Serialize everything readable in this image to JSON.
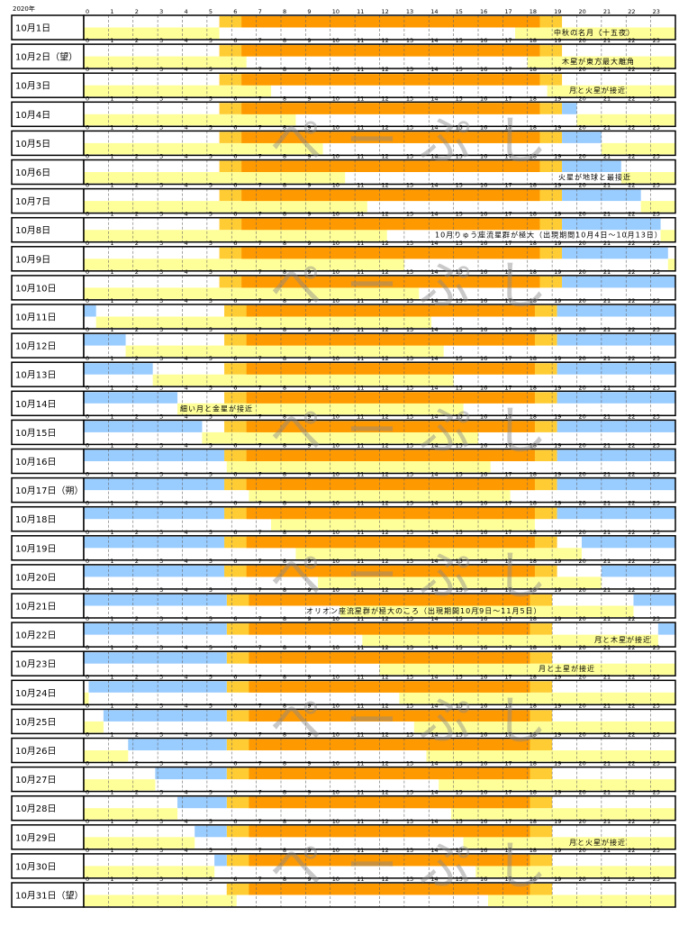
{
  "header": {
    "year": "2020年"
  },
  "watermark": "ぺーぷし",
  "colors": {
    "twilight": "#ffcc33",
    "day": "#ff9900",
    "night": "#99ccff",
    "moon": "#ffff99"
  },
  "hours": [
    0,
    1,
    2,
    3,
    4,
    5,
    6,
    7,
    8,
    9,
    10,
    11,
    12,
    13,
    14,
    15,
    16,
    17,
    18,
    19,
    20,
    21,
    22,
    23
  ],
  "days": [
    {
      "label": "10月1日",
      "twilight": [
        5.5,
        19.4
      ],
      "day": [
        6.4,
        18.5
      ],
      "night": [],
      "moon": [
        [
          0,
          5.5
        ],
        [
          17.5,
          24
        ]
      ],
      "note": "中秋の名月（十五夜）"
    },
    {
      "label": "10月2日（望）",
      "twilight": [
        5.5,
        19.4
      ],
      "day": [
        6.4,
        18.5
      ],
      "night": [],
      "moon": [
        [
          0,
          6.6
        ],
        [
          18.0,
          24
        ]
      ],
      "note": "木星が東方最大離角"
    },
    {
      "label": "10月3日",
      "twilight": [
        5.5,
        19.4
      ],
      "day": [
        6.4,
        18.5
      ],
      "night": [],
      "moon": [
        [
          0,
          7.6
        ],
        [
          18.8,
          24
        ]
      ],
      "note": "月と火星が接近"
    },
    {
      "label": "10月4日",
      "twilight": [
        5.5,
        19.4
      ],
      "day": [
        6.4,
        18.5
      ],
      "night": [
        [
          19.4,
          20.0
        ]
      ],
      "moon": [
        [
          0,
          8.6
        ],
        [
          20.0,
          24
        ]
      ]
    },
    {
      "label": "10月5日",
      "twilight": [
        5.5,
        19.4
      ],
      "day": [
        6.4,
        18.5
      ],
      "night": [
        [
          19.4,
          21.0
        ]
      ],
      "moon": [
        [
          0,
          9.7
        ],
        [
          21.0,
          24
        ]
      ]
    },
    {
      "label": "10月6日",
      "twilight": [
        5.5,
        19.4
      ],
      "day": [
        6.4,
        18.5
      ],
      "night": [
        [
          19.4,
          21.8
        ]
      ],
      "moon": [
        [
          0,
          10.6
        ],
        [
          21.8,
          24
        ]
      ],
      "note": "火星が地球と最接近"
    },
    {
      "label": "10月7日",
      "twilight": [
        5.5,
        19.4
      ],
      "day": [
        6.4,
        18.5
      ],
      "night": [
        [
          19.4,
          22.6
        ]
      ],
      "moon": [
        [
          0,
          11.5
        ],
        [
          22.6,
          24
        ]
      ]
    },
    {
      "label": "10月8日",
      "twilight": [
        5.5,
        19.4
      ],
      "day": [
        6.4,
        18.5
      ],
      "night": [
        [
          19.4,
          23.4
        ]
      ],
      "moon": [
        [
          0,
          12.3
        ],
        [
          23.4,
          24
        ]
      ],
      "note": "10月りゅう座流星群が極大（出現期間10月4日～10月13日）"
    },
    {
      "label": "10月9日",
      "twilight": [
        5.5,
        19.4
      ],
      "day": [
        6.4,
        18.5
      ],
      "night": [
        [
          19.4,
          23.7
        ]
      ],
      "moon": [
        [
          0,
          13.0
        ],
        [
          23.7,
          24
        ]
      ]
    },
    {
      "label": "10月10日",
      "twilight": [
        5.5,
        19.4
      ],
      "day": [
        6.4,
        18.5
      ],
      "night": [
        [
          19.4,
          24
        ]
      ],
      "moon": [
        [
          0,
          13.6
        ]
      ]
    },
    {
      "label": "10月11日",
      "twilight": [
        5.7,
        19.2
      ],
      "day": [
        6.6,
        18.3
      ],
      "night": [
        [
          0,
          0.5
        ],
        [
          19.2,
          24
        ]
      ],
      "moon": [
        [
          0.5,
          14.1
        ]
      ]
    },
    {
      "label": "10月12日",
      "twilight": [
        5.7,
        19.2
      ],
      "day": [
        6.6,
        18.3
      ],
      "night": [
        [
          0,
          1.7
        ],
        [
          19.2,
          24
        ]
      ],
      "moon": [
        [
          1.7,
          14.6
        ]
      ]
    },
    {
      "label": "10月13日",
      "twilight": [
        5.7,
        19.2
      ],
      "day": [
        6.6,
        18.3
      ],
      "night": [
        [
          0,
          2.8
        ],
        [
          19.2,
          24
        ]
      ],
      "moon": [
        [
          2.8,
          15.0
        ]
      ]
    },
    {
      "label": "10月14日",
      "twilight": [
        5.7,
        19.2
      ],
      "day": [
        6.6,
        18.3
      ],
      "night": [
        [
          0,
          3.8
        ],
        [
          19.2,
          24
        ]
      ],
      "moon": [
        [
          3.8,
          15.4
        ]
      ],
      "note": "細い月と金星が接近"
    },
    {
      "label": "10月15日",
      "twilight": [
        5.7,
        19.2
      ],
      "day": [
        6.6,
        18.3
      ],
      "night": [
        [
          0,
          4.8
        ],
        [
          19.2,
          24
        ]
      ],
      "moon": [
        [
          4.8,
          16.0
        ]
      ]
    },
    {
      "label": "10月16日",
      "twilight": [
        5.7,
        19.2
      ],
      "day": [
        6.6,
        18.3
      ],
      "night": [
        [
          0,
          5.7
        ],
        [
          19.2,
          24
        ]
      ],
      "moon": [
        [
          5.8,
          16.5
        ]
      ]
    },
    {
      "label": "10月17日（朔）",
      "twilight": [
        5.7,
        19.2
      ],
      "day": [
        6.6,
        18.3
      ],
      "night": [
        [
          0,
          5.7
        ],
        [
          19.2,
          24
        ]
      ],
      "moon": [
        [
          6.7,
          17.3
        ]
      ]
    },
    {
      "label": "10月18日",
      "twilight": [
        5.7,
        19.2
      ],
      "day": [
        6.6,
        18.3
      ],
      "night": [
        [
          0,
          5.7
        ],
        [
          19.2,
          24
        ]
      ],
      "moon": [
        [
          7.6,
          18.3
        ]
      ]
    },
    {
      "label": "10月19日",
      "twilight": [
        5.7,
        19.2
      ],
      "day": [
        6.6,
        18.3
      ],
      "night": [
        [
          0,
          5.7
        ],
        [
          20.2,
          24
        ]
      ],
      "moon": [
        [
          8.6,
          20.2
        ]
      ]
    },
    {
      "label": "10月20日",
      "twilight": [
        5.7,
        19.2
      ],
      "day": [
        6.6,
        18.3
      ],
      "night": [
        [
          0,
          5.7
        ],
        [
          21.0,
          24
        ]
      ],
      "moon": [
        [
          9.5,
          21.0
        ]
      ]
    },
    {
      "label": "10月21日",
      "twilight": [
        5.8,
        19.0
      ],
      "day": [
        6.7,
        18.1
      ],
      "night": [
        [
          0,
          5.8
        ],
        [
          22.3,
          24
        ]
      ],
      "moon": [
        [
          10.4,
          22.3
        ]
      ],
      "note": "オリオン座流星群が極大のころ（出現期間10月9日～11月5日）"
    },
    {
      "label": "10月22日",
      "twilight": [
        5.8,
        19.0
      ],
      "day": [
        6.7,
        18.1
      ],
      "night": [
        [
          0,
          5.8
        ],
        [
          23.3,
          24
        ]
      ],
      "moon": [
        [
          11.3,
          23.3
        ]
      ],
      "note": "月と木星が接近"
    },
    {
      "label": "10月23日",
      "twilight": [
        5.8,
        19.0
      ],
      "day": [
        6.7,
        18.1
      ],
      "night": [
        [
          0,
          5.8
        ]
      ],
      "moon": [
        [
          12.0,
          24
        ]
      ],
      "note": "月と土星が接近"
    },
    {
      "label": "10月24日",
      "twilight": [
        5.8,
        19.0
      ],
      "day": [
        6.7,
        18.1
      ],
      "night": [
        [
          0.2,
          5.8
        ]
      ],
      "moon": [
        [
          0,
          0.2
        ],
        [
          12.8,
          24
        ]
      ]
    },
    {
      "label": "10月25日",
      "twilight": [
        5.8,
        19.0
      ],
      "day": [
        6.7,
        18.1
      ],
      "night": [
        [
          0.8,
          5.8
        ]
      ],
      "moon": [
        [
          0,
          0.8
        ],
        [
          13.4,
          24
        ]
      ]
    },
    {
      "label": "10月26日",
      "twilight": [
        5.8,
        19.0
      ],
      "day": [
        6.7,
        18.1
      ],
      "night": [
        [
          1.8,
          5.8
        ]
      ],
      "moon": [
        [
          0,
          1.8
        ],
        [
          13.9,
          24
        ]
      ]
    },
    {
      "label": "10月27日",
      "twilight": [
        5.8,
        19.0
      ],
      "day": [
        6.7,
        18.1
      ],
      "night": [
        [
          2.9,
          5.8
        ]
      ],
      "moon": [
        [
          0,
          2.9
        ],
        [
          14.4,
          24
        ]
      ]
    },
    {
      "label": "10月28日",
      "twilight": [
        5.8,
        19.0
      ],
      "day": [
        6.7,
        18.1
      ],
      "night": [
        [
          3.8,
          5.8
        ]
      ],
      "moon": [
        [
          0,
          3.8
        ],
        [
          14.9,
          24
        ]
      ]
    },
    {
      "label": "10月29日",
      "twilight": [
        5.8,
        19.0
      ],
      "day": [
        6.7,
        18.1
      ],
      "night": [
        [
          4.5,
          5.8
        ]
      ],
      "moon": [
        [
          0,
          4.5
        ],
        [
          15.4,
          24
        ]
      ],
      "note": "月と火星が接近"
    },
    {
      "label": "10月30日",
      "twilight": [
        5.8,
        19.0
      ],
      "day": [
        6.7,
        18.1
      ],
      "night": [
        [
          5.3,
          5.8
        ]
      ],
      "moon": [
        [
          0,
          5.3
        ],
        [
          15.9,
          24
        ]
      ]
    },
    {
      "label": "10月31日（望）",
      "twilight": [
        5.8,
        19.0
      ],
      "day": [
        6.7,
        18.1
      ],
      "night": [],
      "moon": [
        [
          0,
          6.2
        ],
        [
          16.4,
          24
        ]
      ]
    }
  ]
}
